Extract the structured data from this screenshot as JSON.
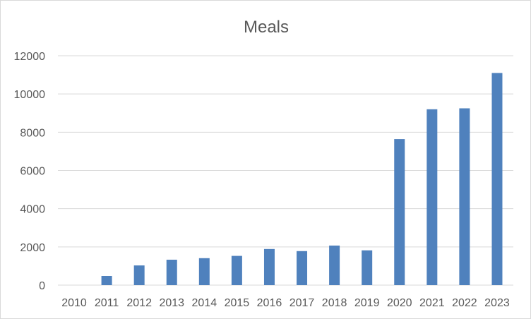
{
  "chart_data": {
    "type": "bar",
    "title": "Meals",
    "xlabel": "",
    "ylabel": "",
    "categories": [
      "2010",
      "2011",
      "2012",
      "2013",
      "2014",
      "2015",
      "2016",
      "2017",
      "2018",
      "2019",
      "2020",
      "2021",
      "2022",
      "2023"
    ],
    "values": [
      0,
      480,
      1030,
      1330,
      1410,
      1530,
      1890,
      1780,
      2070,
      1820,
      7640,
      9200,
      9250,
      11100
    ],
    "ylim": [
      0,
      12000
    ],
    "yticks": [
      "0",
      "2000",
      "4000",
      "6000",
      "8000",
      "10000",
      "12000"
    ],
    "grid": true,
    "legend": "none",
    "colors": {
      "bar": "#4f81bd",
      "grid": "#d9d9d9",
      "text": "#595959"
    }
  }
}
